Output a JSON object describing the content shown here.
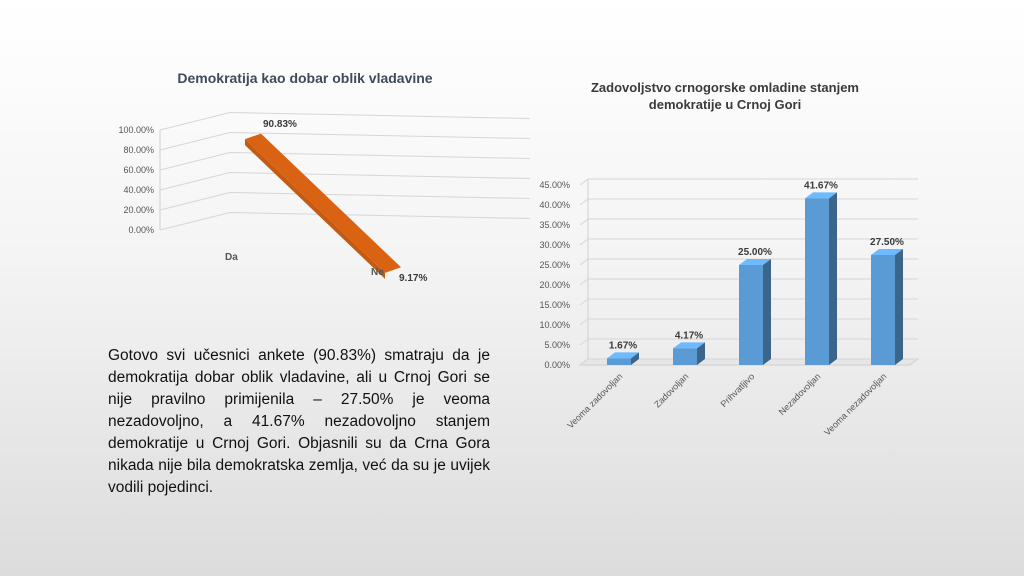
{
  "body_text": "Gotovo svi učesnici ankete (90.83%) smatraju da je demokratija dobar oblik vladavine, ali u Crnoj Gori se nije pravilno primijenila – 27.50% je veoma nezadovoljno, a 41.67% nezadovoljno stanjem demokratije u Crnoj Gori. Objasnili su da Crna Gora nikada nije bila demokratska zemlja, već da su je uvijek vodili pojedinci.",
  "chart_data": [
    {
      "type": "line",
      "title": "Demokratija kao dobar oblik vladavine",
      "categories": [
        "Da",
        "Ne"
      ],
      "values": [
        90.83,
        9.17
      ],
      "value_labels": [
        "90.83%",
        "9.17%"
      ],
      "y_ticks": [
        "0.00%",
        "20.00%",
        "40.00%",
        "60.00%",
        "80.00%",
        "100.00%"
      ],
      "ylim": [
        0,
        100
      ],
      "grid": true,
      "style": "3d",
      "color": "#c55a11"
    },
    {
      "type": "bar",
      "title": "Zadovoljstvo crnogorske omladine stanjem demokratije u Crnoj Gori",
      "categories": [
        "Veoma zadovoljan",
        "Zadovoljan",
        "Prihvatljivo",
        "Nezadovoljan",
        "Veoma nezadovoljan"
      ],
      "values": [
        1.67,
        4.17,
        25.0,
        41.67,
        27.5
      ],
      "value_labels": [
        "1.67%",
        "4.17%",
        "25.00%",
        "41.67%",
        "27.50%"
      ],
      "y_ticks": [
        "0.00%",
        "5.00%",
        "10.00%",
        "15.00%",
        "20.00%",
        "25.00%",
        "30.00%",
        "35.00%",
        "40.00%",
        "45.00%"
      ],
      "ylim": [
        0,
        45
      ],
      "grid": true,
      "style": "3d",
      "color": "#5b9bd5"
    }
  ]
}
